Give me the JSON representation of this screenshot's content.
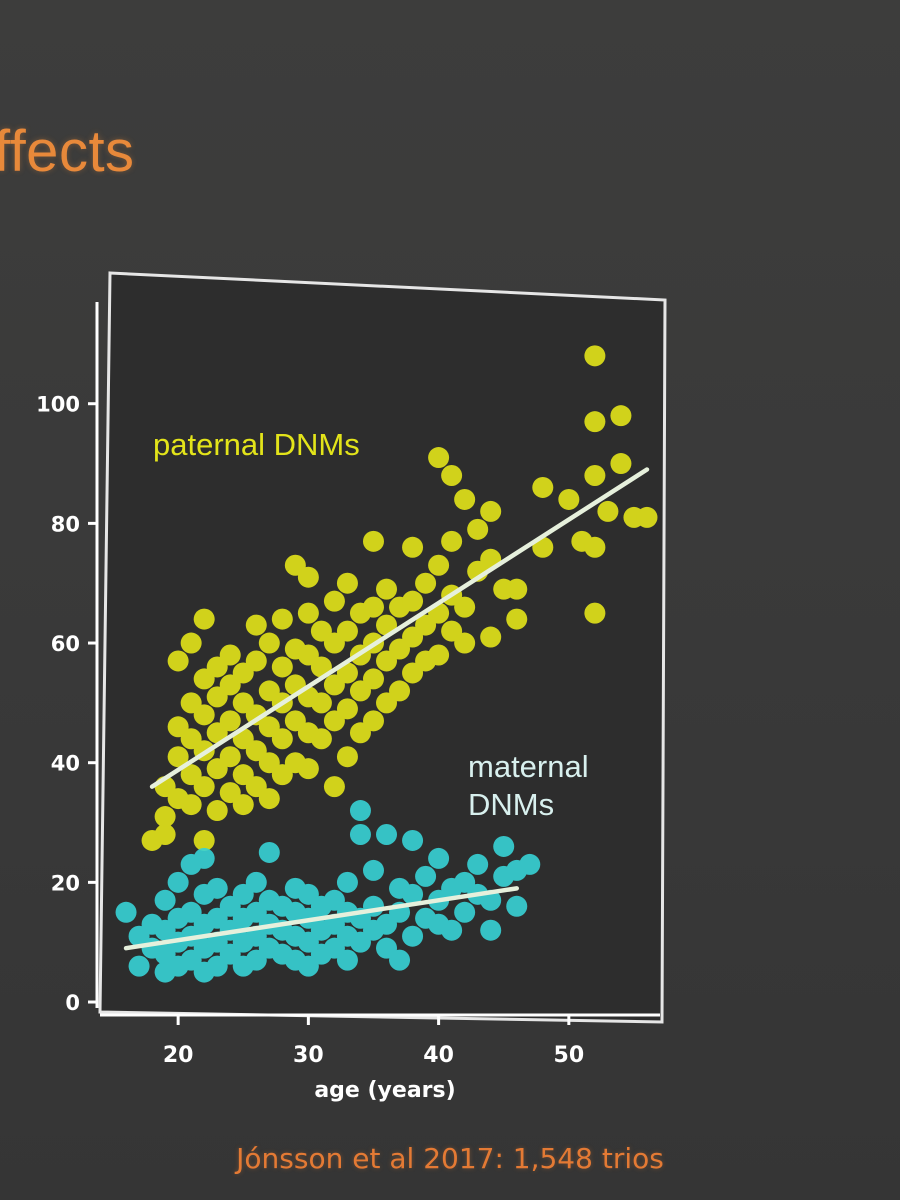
{
  "slide": {
    "title": "ffects",
    "caption": "Jónsson et al 2017: 1,548 trios"
  },
  "colors": {
    "paternal": "#e3e41a",
    "maternal": "#38d3d6",
    "fit_line": "#e6f0dc",
    "axis": "#ffffff",
    "frame": "#e6e6e6"
  },
  "chart_data": {
    "type": "scatter",
    "xlabel": "age (years)",
    "ylabel": "",
    "xlim": [
      14,
      57
    ],
    "ylim": [
      -1,
      117
    ],
    "x_ticks": [
      20,
      30,
      40,
      50
    ],
    "y_ticks": [
      0,
      20,
      40,
      60,
      80,
      100
    ],
    "series": [
      {
        "name": "paternal DNMs",
        "label": "paternal DNMs",
        "fit": {
          "x": [
            18,
            56
          ],
          "y": [
            36,
            89
          ]
        },
        "points": [
          [
            18,
            27
          ],
          [
            19,
            28
          ],
          [
            19,
            31
          ],
          [
            19,
            36
          ],
          [
            20,
            34
          ],
          [
            20,
            41
          ],
          [
            20,
            46
          ],
          [
            20,
            57
          ],
          [
            21,
            33
          ],
          [
            21,
            38
          ],
          [
            21,
            44
          ],
          [
            21,
            50
          ],
          [
            21,
            60
          ],
          [
            22,
            27
          ],
          [
            22,
            36
          ],
          [
            22,
            42
          ],
          [
            22,
            48
          ],
          [
            22,
            54
          ],
          [
            22,
            64
          ],
          [
            23,
            32
          ],
          [
            23,
            39
          ],
          [
            23,
            45
          ],
          [
            23,
            51
          ],
          [
            23,
            56
          ],
          [
            24,
            35
          ],
          [
            24,
            41
          ],
          [
            24,
            47
          ],
          [
            24,
            53
          ],
          [
            24,
            58
          ],
          [
            25,
            33
          ],
          [
            25,
            38
          ],
          [
            25,
            44
          ],
          [
            25,
            50
          ],
          [
            25,
            55
          ],
          [
            26,
            36
          ],
          [
            26,
            42
          ],
          [
            26,
            48
          ],
          [
            26,
            57
          ],
          [
            26,
            63
          ],
          [
            27,
            34
          ],
          [
            27,
            40
          ],
          [
            27,
            46
          ],
          [
            27,
            52
          ],
          [
            27,
            60
          ],
          [
            28,
            38
          ],
          [
            28,
            44
          ],
          [
            28,
            50
          ],
          [
            28,
            56
          ],
          [
            28,
            64
          ],
          [
            29,
            40
          ],
          [
            29,
            47
          ],
          [
            29,
            53
          ],
          [
            29,
            59
          ],
          [
            29,
            73
          ],
          [
            30,
            39
          ],
          [
            30,
            45
          ],
          [
            30,
            51
          ],
          [
            30,
            58
          ],
          [
            30,
            65
          ],
          [
            30,
            71
          ],
          [
            31,
            44
          ],
          [
            31,
            50
          ],
          [
            31,
            56
          ],
          [
            31,
            62
          ],
          [
            32,
            36
          ],
          [
            32,
            47
          ],
          [
            32,
            53
          ],
          [
            32,
            60
          ],
          [
            32,
            67
          ],
          [
            33,
            41
          ],
          [
            33,
            49
          ],
          [
            33,
            55
          ],
          [
            33,
            62
          ],
          [
            33,
            70
          ],
          [
            34,
            45
          ],
          [
            34,
            52
          ],
          [
            34,
            58
          ],
          [
            34,
            65
          ],
          [
            35,
            47
          ],
          [
            35,
            54
          ],
          [
            35,
            60
          ],
          [
            35,
            66
          ],
          [
            35,
            77
          ],
          [
            36,
            50
          ],
          [
            36,
            57
          ],
          [
            36,
            63
          ],
          [
            36,
            69
          ],
          [
            37,
            52
          ],
          [
            37,
            59
          ],
          [
            37,
            66
          ],
          [
            38,
            55
          ],
          [
            38,
            61
          ],
          [
            38,
            67
          ],
          [
            38,
            76
          ],
          [
            39,
            57
          ],
          [
            39,
            63
          ],
          [
            39,
            70
          ],
          [
            40,
            58
          ],
          [
            40,
            65
          ],
          [
            40,
            73
          ],
          [
            40,
            91
          ],
          [
            41,
            62
          ],
          [
            41,
            68
          ],
          [
            41,
            77
          ],
          [
            41,
            88
          ],
          [
            42,
            60
          ],
          [
            42,
            66
          ],
          [
            42,
            84
          ],
          [
            43,
            72
          ],
          [
            43,
            79
          ],
          [
            44,
            61
          ],
          [
            44,
            74
          ],
          [
            44,
            82
          ],
          [
            45,
            69
          ],
          [
            46,
            64
          ],
          [
            46,
            69
          ],
          [
            48,
            76
          ],
          [
            48,
            86
          ],
          [
            50,
            84
          ],
          [
            51,
            77
          ],
          [
            52,
            76
          ],
          [
            52,
            88
          ],
          [
            52,
            97
          ],
          [
            52,
            108
          ],
          [
            52,
            65
          ],
          [
            53,
            82
          ],
          [
            54,
            90
          ],
          [
            54,
            98
          ],
          [
            55,
            81
          ],
          [
            56,
            81
          ]
        ]
      },
      {
        "name": "maternal DNMs",
        "label": "maternal DNMs",
        "fit": {
          "x": [
            16,
            46
          ],
          "y": [
            9,
            19
          ]
        },
        "points": [
          [
            16,
            15
          ],
          [
            17,
            6
          ],
          [
            17,
            11
          ],
          [
            18,
            9
          ],
          [
            18,
            13
          ],
          [
            19,
            5
          ],
          [
            19,
            8
          ],
          [
            19,
            12
          ],
          [
            19,
            17
          ],
          [
            20,
            6
          ],
          [
            20,
            10
          ],
          [
            20,
            14
          ],
          [
            20,
            20
          ],
          [
            21,
            7
          ],
          [
            21,
            11
          ],
          [
            21,
            15
          ],
          [
            21,
            23
          ],
          [
            22,
            5
          ],
          [
            22,
            9
          ],
          [
            22,
            13
          ],
          [
            22,
            18
          ],
          [
            22,
            24
          ],
          [
            23,
            6
          ],
          [
            23,
            10
          ],
          [
            23,
            14
          ],
          [
            23,
            19
          ],
          [
            24,
            8
          ],
          [
            24,
            12
          ],
          [
            24,
            16
          ],
          [
            25,
            6
          ],
          [
            25,
            10
          ],
          [
            25,
            14
          ],
          [
            25,
            18
          ],
          [
            26,
            7
          ],
          [
            26,
            11
          ],
          [
            26,
            15
          ],
          [
            26,
            20
          ],
          [
            27,
            9
          ],
          [
            27,
            13
          ],
          [
            27,
            17
          ],
          [
            27,
            25
          ],
          [
            28,
            8
          ],
          [
            28,
            12
          ],
          [
            28,
            16
          ],
          [
            29,
            7
          ],
          [
            29,
            11
          ],
          [
            29,
            15
          ],
          [
            29,
            19
          ],
          [
            30,
            6
          ],
          [
            30,
            10
          ],
          [
            30,
            14
          ],
          [
            30,
            18
          ],
          [
            31,
            8
          ],
          [
            31,
            12
          ],
          [
            31,
            16
          ],
          [
            32,
            9
          ],
          [
            32,
            13
          ],
          [
            32,
            17
          ],
          [
            33,
            7
          ],
          [
            33,
            11
          ],
          [
            33,
            15
          ],
          [
            33,
            20
          ],
          [
            34,
            10
          ],
          [
            34,
            14
          ],
          [
            34,
            28
          ],
          [
            34,
            32
          ],
          [
            35,
            12
          ],
          [
            35,
            16
          ],
          [
            35,
            22
          ],
          [
            36,
            9
          ],
          [
            36,
            13
          ],
          [
            36,
            28
          ],
          [
            37,
            7
          ],
          [
            37,
            15
          ],
          [
            37,
            19
          ],
          [
            38,
            11
          ],
          [
            38,
            18
          ],
          [
            38,
            27
          ],
          [
            39,
            14
          ],
          [
            39,
            21
          ],
          [
            40,
            13
          ],
          [
            40,
            17
          ],
          [
            40,
            24
          ],
          [
            41,
            12
          ],
          [
            41,
            19
          ],
          [
            42,
            15
          ],
          [
            42,
            20
          ],
          [
            43,
            18
          ],
          [
            43,
            23
          ],
          [
            44,
            12
          ],
          [
            44,
            17
          ],
          [
            45,
            21
          ],
          [
            45,
            26
          ],
          [
            46,
            16
          ],
          [
            46,
            22
          ],
          [
            47,
            23
          ]
        ]
      }
    ]
  }
}
